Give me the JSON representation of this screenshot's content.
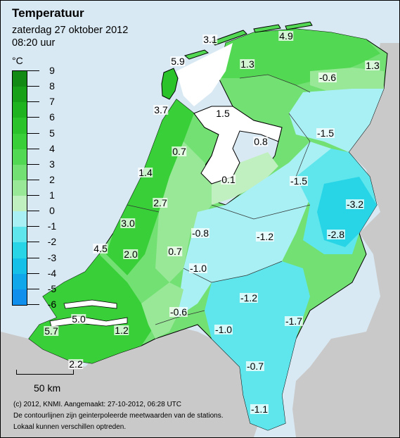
{
  "header": {
    "title": "Temperatuur",
    "date": "zaterdag 27 oktober 2012",
    "time": "08:20 uur"
  },
  "legend": {
    "unit": "°C",
    "ticks": [
      "9",
      "8",
      "7",
      "6",
      "5",
      "4",
      "3",
      "2",
      "1",
      "0",
      "-1",
      "-2",
      "-3",
      "-4",
      "-5",
      "-6"
    ],
    "colors": [
      "#138a13",
      "#19a019",
      "#1fb41f",
      "#2ac42a",
      "#38cf38",
      "#52d852",
      "#72e072",
      "#98e898",
      "#c0f0c0",
      "#a8f0f4",
      "#5fe6ec",
      "#28d5e6",
      "#14bfe8",
      "#10a6ea",
      "#1090ec"
    ]
  },
  "stations": [
    {
      "name": "station-texel",
      "value": "5.9"
    },
    {
      "name": "station-vlieland",
      "value": "3.1"
    },
    {
      "name": "station-schiermonnikoog",
      "value": "4.9"
    },
    {
      "name": "station-groningen-coast",
      "value": "1.3"
    },
    {
      "name": "station-friesland",
      "value": "1.3"
    },
    {
      "name": "station-groningen",
      "value": "-0.6"
    },
    {
      "name": "station-den-helder",
      "value": "3.7"
    },
    {
      "name": "station-stavoren",
      "value": "1.5"
    },
    {
      "name": "station-berkhout",
      "value": "0.7"
    },
    {
      "name": "station-noordoostpolder",
      "value": "0.8"
    },
    {
      "name": "station-hoogeveen",
      "value": "-1.5"
    },
    {
      "name": "station-ijmuiden",
      "value": "1.4"
    },
    {
      "name": "station-lelystad",
      "value": "0.1"
    },
    {
      "name": "station-heino",
      "value": "-1.5"
    },
    {
      "name": "station-schiphol",
      "value": "2.7"
    },
    {
      "name": "station-twenthe",
      "value": "-3.2"
    },
    {
      "name": "station-valkenburg",
      "value": "3.0"
    },
    {
      "name": "station-de-bilt",
      "value": "-0.8"
    },
    {
      "name": "station-deelen",
      "value": "-1.2"
    },
    {
      "name": "station-hupsel",
      "value": "-2.8"
    },
    {
      "name": "station-hoek-van-holland",
      "value": "4.5"
    },
    {
      "name": "station-rotterdam",
      "value": "2.0"
    },
    {
      "name": "station-cabauw",
      "value": "0.7"
    },
    {
      "name": "station-herwijnen",
      "value": "-1.0"
    },
    {
      "name": "station-volkel",
      "value": "-1.2"
    },
    {
      "name": "station-wilhelminadorp",
      "value": "5.0"
    },
    {
      "name": "station-gilze-rijen",
      "value": "-0.6"
    },
    {
      "name": "station-eindhoven",
      "value": "-1.0"
    },
    {
      "name": "station-ell",
      "value": "-1.7"
    },
    {
      "name": "station-vlissingen",
      "value": "5.7"
    },
    {
      "name": "station-woensdrecht",
      "value": "1.2"
    },
    {
      "name": "station-westdorpe",
      "value": "2.2"
    },
    {
      "name": "station-arcen",
      "value": "-0.7"
    },
    {
      "name": "station-maastricht",
      "value": "-1.1"
    }
  ],
  "scale": {
    "label": "50 km"
  },
  "footer": {
    "copyright": "(c) 2012, KNMI. Aangemaakt: 27-10-2012, 06:28 UTC",
    "note1": "De contourlijnen zijn geinterpoleerde meetwaarden van de stations.",
    "note2": "Lokaal kunnen verschillen optreden."
  }
}
